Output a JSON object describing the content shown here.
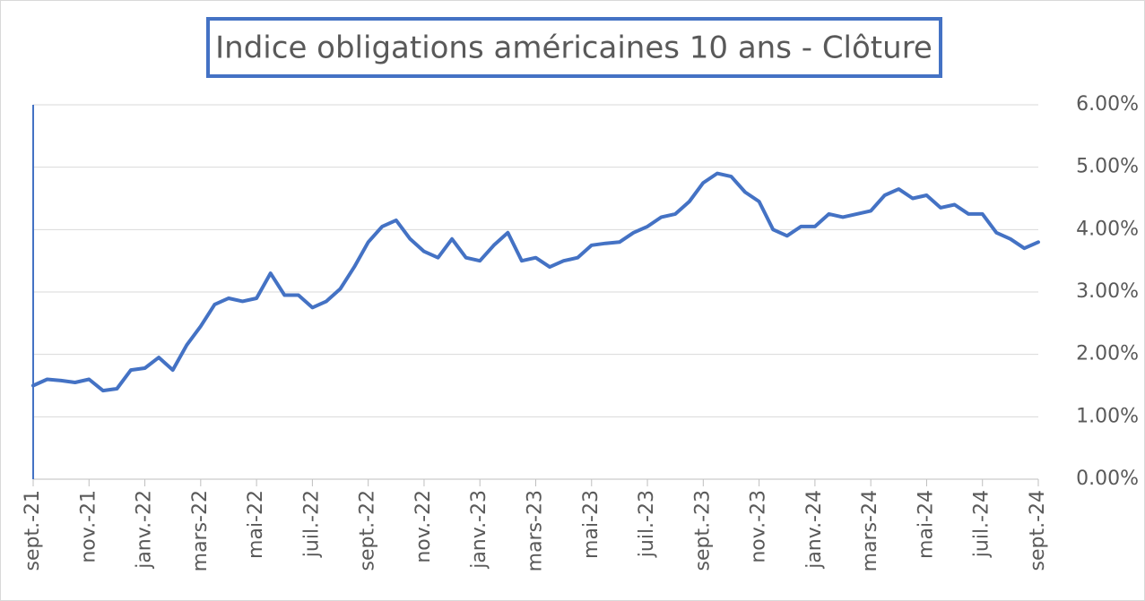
{
  "chart_data": {
    "type": "line",
    "title": "Indice obligations américaines 10 ans  - Clôture",
    "categories": [
      "sept.-21",
      null,
      null,
      null,
      "nov.-21",
      null,
      null,
      null,
      "janv.-22",
      null,
      null,
      null,
      "mars-22",
      null,
      null,
      null,
      "mai-22",
      null,
      null,
      null,
      "juil.-22",
      null,
      null,
      null,
      "sept.-22",
      null,
      null,
      null,
      "nov.-22",
      null,
      null,
      null,
      "janv.-23",
      null,
      null,
      null,
      "mars-23",
      null,
      null,
      null,
      "mai-23",
      null,
      null,
      null,
      "juil.-23",
      null,
      null,
      null,
      "sept.-23",
      null,
      null,
      null,
      "nov.-23",
      null,
      null,
      null,
      "janv.-24",
      null,
      null,
      null,
      "mars-24",
      null,
      null,
      null,
      "mai-24",
      null,
      null,
      null,
      "juil.-24",
      null,
      null,
      null,
      "sept.-24"
    ],
    "values": [
      1.5,
      1.6,
      1.58,
      1.55,
      1.6,
      1.42,
      1.45,
      1.75,
      1.78,
      1.95,
      1.75,
      2.15,
      2.45,
      2.8,
      2.9,
      2.85,
      2.9,
      3.3,
      2.95,
      2.95,
      2.75,
      2.85,
      3.05,
      3.4,
      3.8,
      4.05,
      4.15,
      3.85,
      3.65,
      3.55,
      3.85,
      3.55,
      3.5,
      3.75,
      3.95,
      3.5,
      3.55,
      3.4,
      3.5,
      3.55,
      3.75,
      3.78,
      3.8,
      3.95,
      4.05,
      4.2,
      4.25,
      4.45,
      4.75,
      4.9,
      4.85,
      4.6,
      4.45,
      4.0,
      3.9,
      4.05,
      4.05,
      4.25,
      4.2,
      4.25,
      4.3,
      4.55,
      4.65,
      4.5,
      4.55,
      4.35,
      4.4,
      4.25,
      4.25,
      3.95,
      3.85,
      3.7,
      3.8
    ],
    "color": "#4472c4",
    "ylim": [
      0,
      6
    ],
    "yticks": [
      {
        "value": 0,
        "label": "0.00%"
      },
      {
        "value": 1,
        "label": "1.00%"
      },
      {
        "value": 2,
        "label": "2.00%"
      },
      {
        "value": 3,
        "label": "3.00%"
      },
      {
        "value": 4,
        "label": "4.00%"
      },
      {
        "value": 5,
        "label": "5.00%"
      },
      {
        "value": 6,
        "label": "6.00%"
      }
    ],
    "grid": true
  }
}
